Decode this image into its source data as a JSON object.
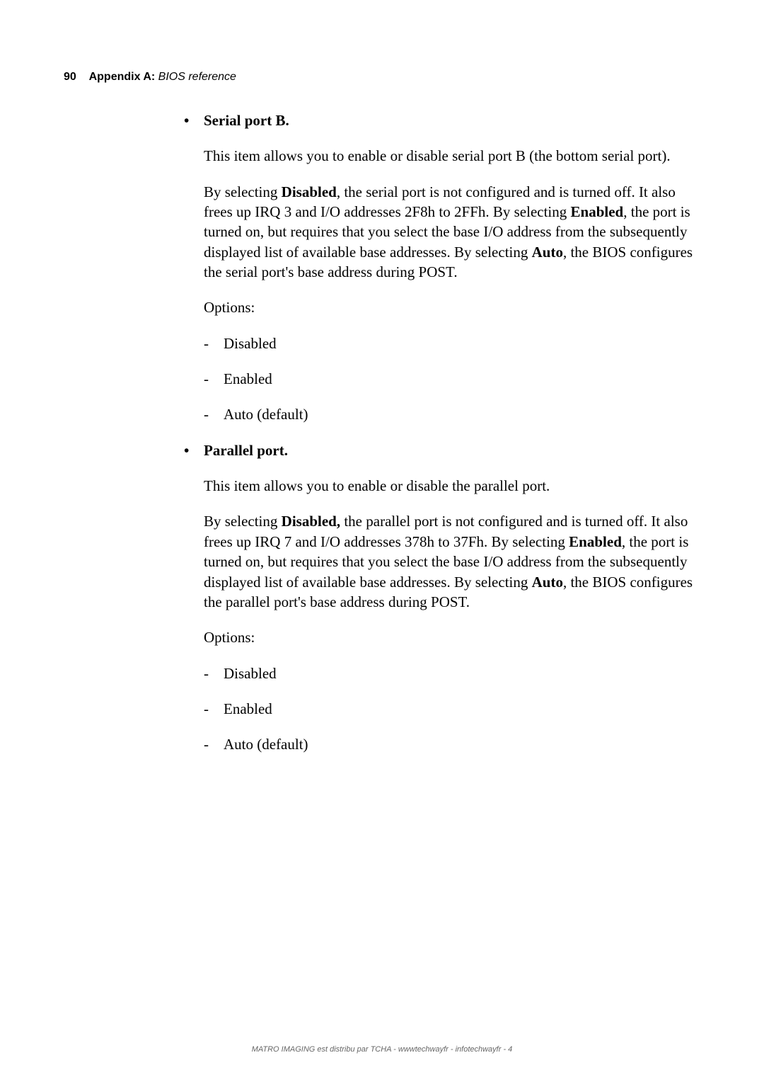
{
  "header": {
    "page_number": "90",
    "appendix_label": "Appendix A:",
    "appendix_subtitle": "BIOS reference"
  },
  "sections": [
    {
      "bullet_label": "Serial port B.",
      "intro": "This item allows you to enable or disable serial port B (the bottom serial port).",
      "body_parts": [
        "By selecting ",
        "Disabled",
        ", the serial port is not configured and is turned off. It also frees up IRQ 3 and I/O addresses 2F8h to 2FFh. By selecting ",
        "Enabled",
        ", the port is turned on, but requires that you select the base I/O address from the subsequently displayed list of available base addresses. By selecting ",
        "Auto",
        ", the BIOS configures the serial port's base address during POST."
      ],
      "options_label": "Options:",
      "options": [
        "Disabled",
        "Enabled",
        "Auto (default)"
      ]
    },
    {
      "bullet_label": "Parallel port.",
      "intro": "This item allows you to enable or disable the parallel port.",
      "body_parts": [
        "By selecting ",
        "Disabled,",
        " the parallel port is not configured and is turned off. It also frees up IRQ 7 and I/O addresses 378h to 37Fh. By selecting ",
        "Enabled",
        ", the port is turned on, but requires that you select the base I/O address from the subsequently displayed list of available base addresses. By selecting ",
        "Auto",
        ", the BIOS configures the parallel port's base address during POST."
      ],
      "options_label": "Options:",
      "options": [
        "Disabled",
        "Enabled",
        "Auto (default)"
      ]
    }
  ],
  "footer": "MATRO IMAGING est distribu par TCHA - wwwtechwayfr - infotechwayfr -   4"
}
